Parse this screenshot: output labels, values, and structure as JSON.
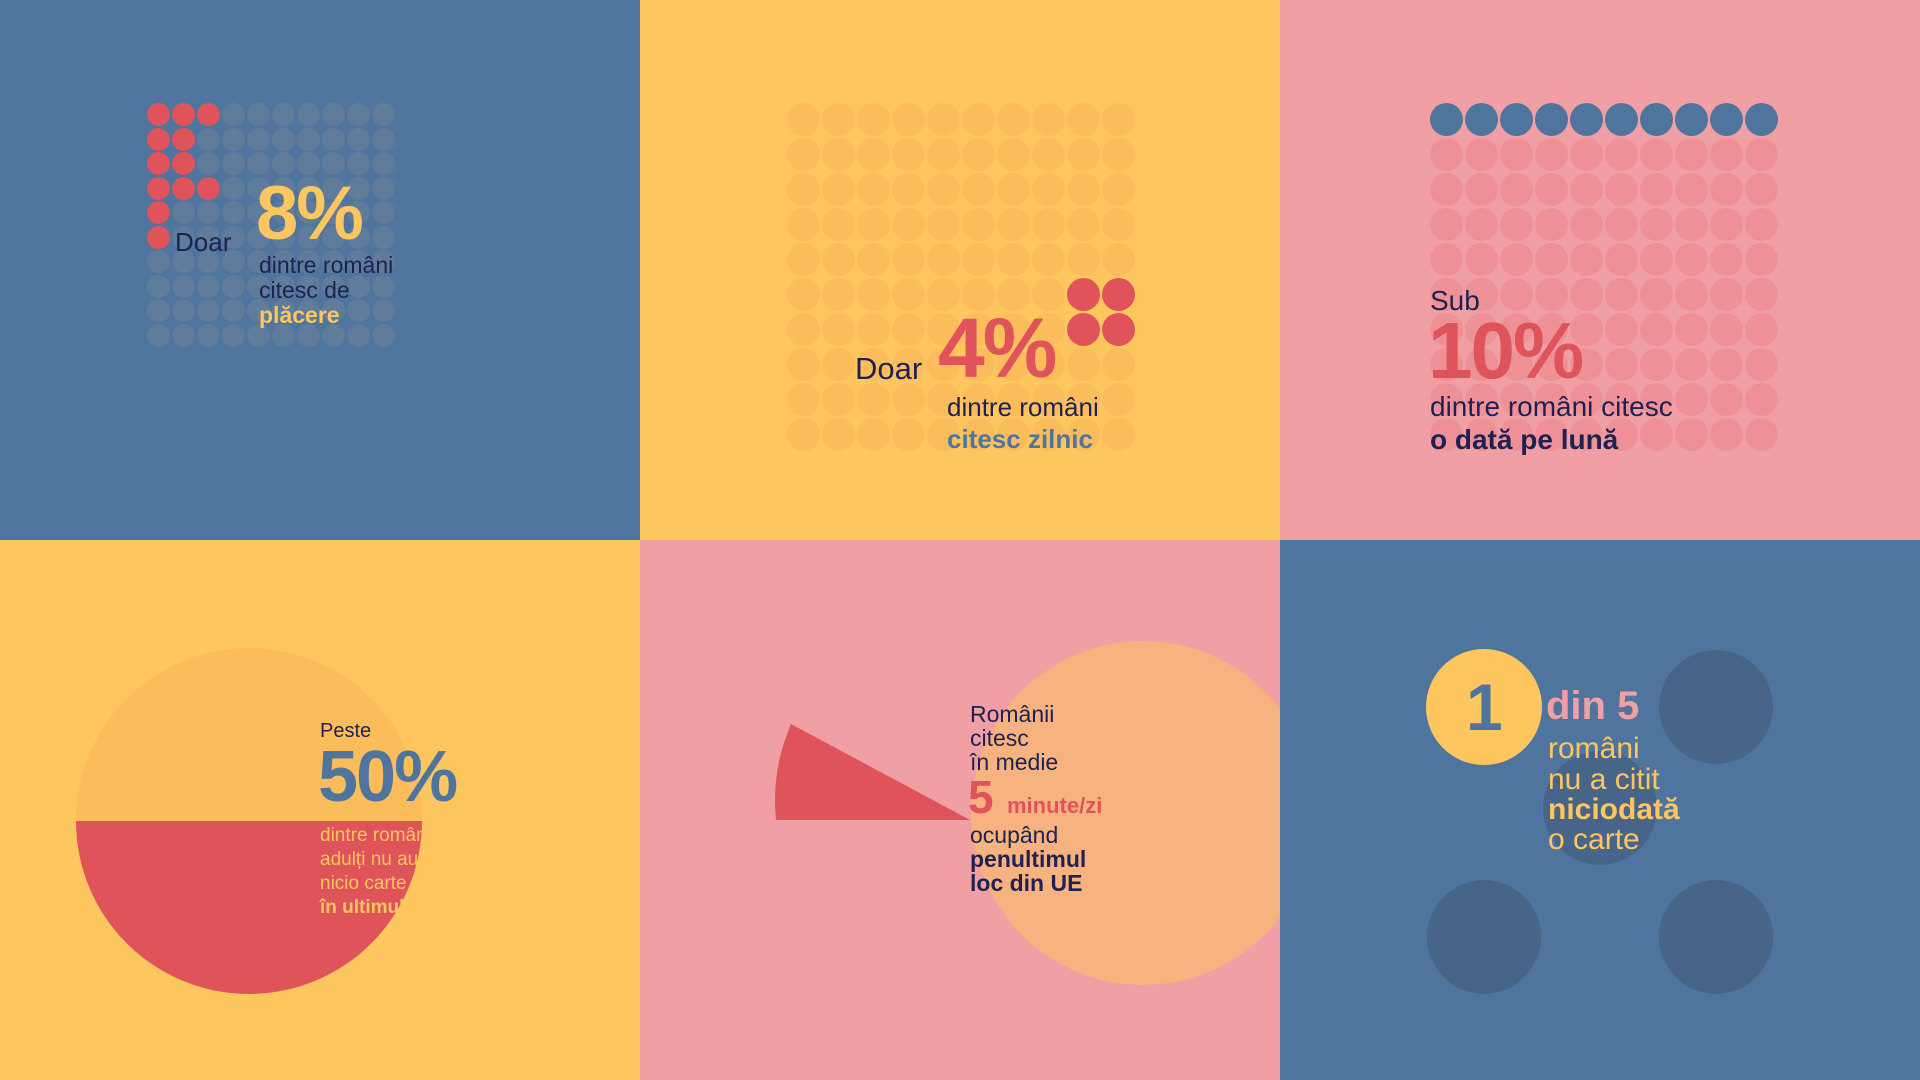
{
  "colors": {
    "blue": "#4f759f",
    "yellow": "#fdc65e",
    "pink": "#f09fa4",
    "red": "#df535a",
    "navy": "#1e2152",
    "dot_blue": "#5f7c9a",
    "dot_yellow": "#fbbd5c",
    "dot_pink": "#ee9197",
    "peach": "#f6b27f",
    "dark_blue_circle": "#466588"
  },
  "panel1": {
    "prefix": "Doar",
    "percent": "8%",
    "line1": "dintre români",
    "line2": "citesc de",
    "emphasis": "plăcere",
    "dots_total": 100,
    "dots_highlighted": 8
  },
  "panel2": {
    "prefix": "Doar",
    "percent": "4%",
    "line1": "dintre români",
    "emphasis": "citesc zilnic",
    "dots_total": 100,
    "dots_highlighted": 4
  },
  "panel3": {
    "prefix": "Sub",
    "percent": "10%",
    "line1": "dintre români citesc",
    "emphasis": "o dată pe lună",
    "dots_total": 100,
    "dots_highlighted": 10
  },
  "panel4": {
    "prefix": "Peste",
    "percent": "50%",
    "line1": "dintre românii",
    "line2": "adulți nu au citit",
    "line3": "nicio carte",
    "emphasis": "în ultimul an",
    "share": 0.5
  },
  "panel5": {
    "line1": "Românii",
    "line2": "citesc",
    "line3": "în medie",
    "number": "5",
    "unit": "minute/zi",
    "line4": "ocupând",
    "emphasis1": "penultimul",
    "emphasis2": "loc din UE"
  },
  "panel6": {
    "number": "1",
    "of_total": "din 5",
    "line1": "români",
    "line2": "nu a citit",
    "emphasis": "niciodată",
    "line3": "o carte"
  }
}
